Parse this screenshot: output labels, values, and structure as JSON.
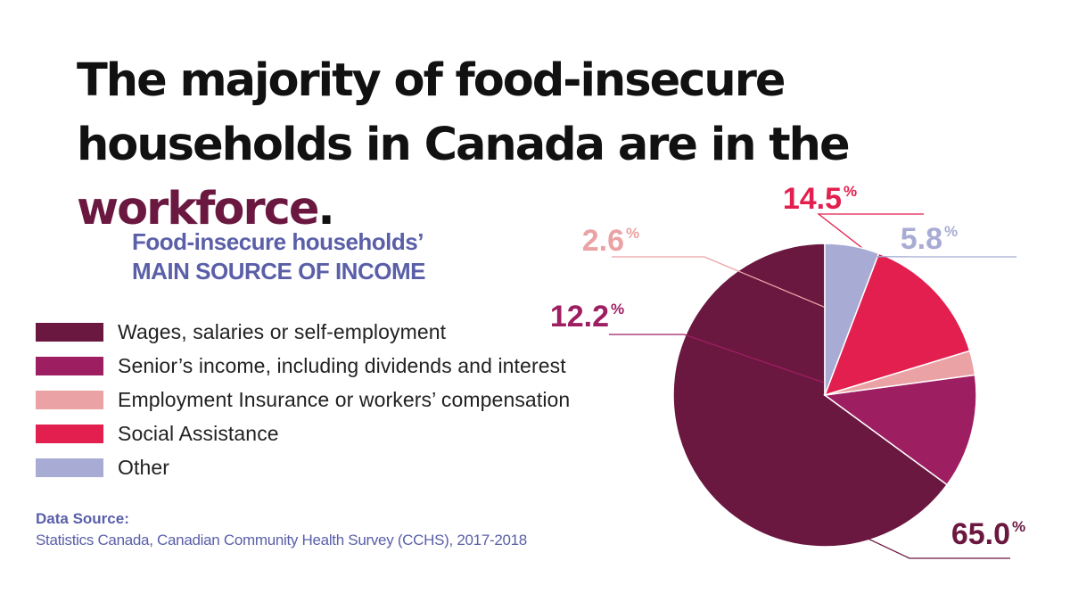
{
  "headline": {
    "part1": "The majority of food-insecure households in Canada are in the ",
    "accent": "workforce",
    "part2": "."
  },
  "colors": {
    "headline_accent": "#6b1840",
    "subtitle": "#5a5fa8"
  },
  "chart_data": {
    "type": "pie",
    "title": "Food-insecure households’ MAIN SOURCE OF INCOME",
    "title_lines": [
      "Food-insecure households’",
      "MAIN SOURCE OF INCOME"
    ],
    "start_angle_deg": 90,
    "direction": "counterclockwise-from-3-oclock",
    "legend_position": "left",
    "percent_symbol": "%",
    "slices": [
      {
        "label": "Wages, salaries or self-employment",
        "value": 65.0,
        "display": "65.0",
        "color": "#6b1840"
      },
      {
        "label": "Senior’s income, including dividends and interest",
        "value": 12.2,
        "display": "12.2",
        "color": "#9e1e62"
      },
      {
        "label": "Employment Insurance or workers’ compensation",
        "value": 2.6,
        "display": "2.6",
        "color": "#eba2a4"
      },
      {
        "label": "Social Assistance",
        "value": 14.5,
        "display": "14.5",
        "color": "#e21f4e"
      },
      {
        "label": "Other",
        "value": 5.8,
        "display": "5.8",
        "color": "#a8acd4"
      }
    ]
  },
  "source": {
    "title": "Data Source:",
    "text": "Statistics Canada, Canadian Community Health Survey (CCHS), 2017-2018"
  }
}
